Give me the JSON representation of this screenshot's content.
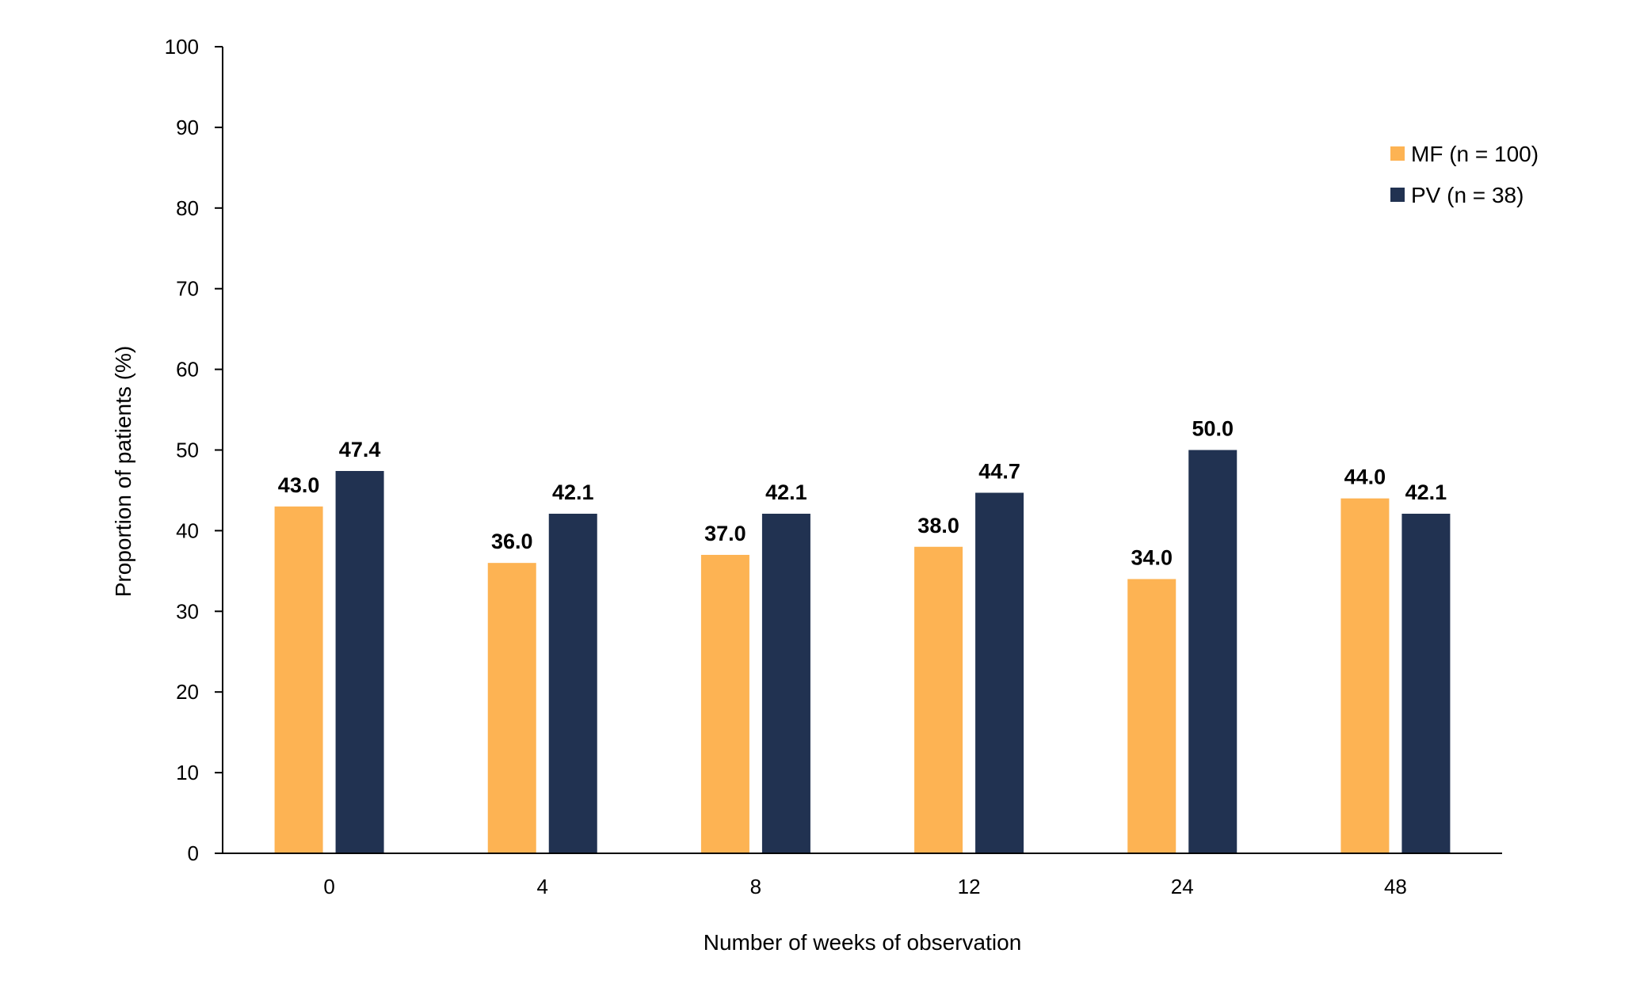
{
  "chart_data": {
    "type": "bar",
    "title": "",
    "xlabel": "Number of weeks of observation",
    "ylabel": "Proportion of patients (%)",
    "ylim": [
      0,
      100
    ],
    "yticks": [
      "0",
      "10",
      "20",
      "30",
      "40",
      "50",
      "60",
      "70",
      "80",
      "90",
      "100"
    ],
    "categories": [
      "0",
      "4",
      "8",
      "12",
      "24",
      "48"
    ],
    "series": [
      {
        "name": "MF (n = 100)",
        "color": "#FDB353",
        "values": [
          43.0,
          36.0,
          37.0,
          38.0,
          34.0,
          44.0
        ],
        "labels": [
          "43.0",
          "36.0",
          "37.0",
          "38.0",
          "34.0",
          "44.0"
        ]
      },
      {
        "name": "PV (n = 38)",
        "color": "#213251",
        "values": [
          47.4,
          42.1,
          42.1,
          44.7,
          50.0,
          42.1
        ],
        "labels": [
          "47.4",
          "42.1",
          "42.1",
          "44.7",
          "50.0",
          "42.1"
        ]
      }
    ],
    "grid": false,
    "legend": "top-right"
  }
}
